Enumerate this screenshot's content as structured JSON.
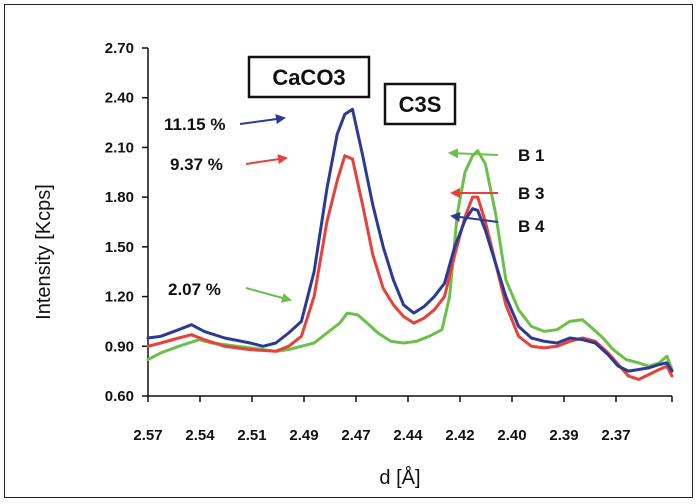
{
  "chart_data": {
    "type": "line",
    "title": "",
    "xlabel": "d [Å]",
    "ylabel": "Intensity [Kcps]",
    "xlim": [
      2.57,
      2.365
    ],
    "ylim": [
      0.6,
      2.7
    ],
    "x_reversed": true,
    "x_tick_labels": [
      "2.57",
      "2.54",
      "2.51",
      "2.49",
      "2.47",
      "2.44",
      "2.42",
      "2.40",
      "2.39",
      "2.37"
    ],
    "y_tick_labels": [
      "0.60",
      "0.90",
      "1.20",
      "1.50",
      "1.80",
      "2.10",
      "2.40",
      "2.70"
    ],
    "grid": false,
    "series": [
      {
        "name": "B 1",
        "color": "#6cc04a",
        "points": [
          [
            2.57,
            0.82
          ],
          [
            2.565,
            0.86
          ],
          [
            2.558,
            0.9
          ],
          [
            2.55,
            0.94
          ],
          [
            2.545,
            0.92
          ],
          [
            2.54,
            0.91
          ],
          [
            2.535,
            0.9
          ],
          [
            2.53,
            0.89
          ],
          [
            2.525,
            0.88
          ],
          [
            2.52,
            0.87
          ],
          [
            2.515,
            0.88
          ],
          [
            2.51,
            0.9
          ],
          [
            2.505,
            0.92
          ],
          [
            2.5,
            0.98
          ],
          [
            2.495,
            1.04
          ],
          [
            2.492,
            1.1
          ],
          [
            2.488,
            1.09
          ],
          [
            2.485,
            1.05
          ],
          [
            2.48,
            0.98
          ],
          [
            2.475,
            0.93
          ],
          [
            2.47,
            0.92
          ],
          [
            2.465,
            0.93
          ],
          [
            2.46,
            0.96
          ],
          [
            2.455,
            1.0
          ],
          [
            2.452,
            1.2
          ],
          [
            2.449,
            1.7
          ],
          [
            2.446,
            1.95
          ],
          [
            2.443,
            2.05
          ],
          [
            2.441,
            2.08
          ],
          [
            2.438,
            2.0
          ],
          [
            2.434,
            1.7
          ],
          [
            2.43,
            1.3
          ],
          [
            2.425,
            1.12
          ],
          [
            2.42,
            1.02
          ],
          [
            2.415,
            0.99
          ],
          [
            2.41,
            1.0
          ],
          [
            2.405,
            1.05
          ],
          [
            2.4,
            1.06
          ],
          [
            2.397,
            1.02
          ],
          [
            2.392,
            0.95
          ],
          [
            2.388,
            0.88
          ],
          [
            2.383,
            0.82
          ],
          [
            2.378,
            0.8
          ],
          [
            2.374,
            0.78
          ],
          [
            2.37,
            0.8
          ],
          [
            2.367,
            0.84
          ],
          [
            2.365,
            0.76
          ]
        ]
      },
      {
        "name": "B 3",
        "color": "#e8413c",
        "points": [
          [
            2.57,
            0.9
          ],
          [
            2.565,
            0.92
          ],
          [
            2.558,
            0.95
          ],
          [
            2.553,
            0.97
          ],
          [
            2.548,
            0.94
          ],
          [
            2.54,
            0.9
          ],
          [
            2.53,
            0.88
          ],
          [
            2.52,
            0.87
          ],
          [
            2.515,
            0.9
          ],
          [
            2.51,
            0.96
          ],
          [
            2.505,
            1.2
          ],
          [
            2.5,
            1.65
          ],
          [
            2.496,
            1.9
          ],
          [
            2.493,
            2.05
          ],
          [
            2.49,
            2.03
          ],
          [
            2.486,
            1.75
          ],
          [
            2.482,
            1.45
          ],
          [
            2.478,
            1.25
          ],
          [
            2.474,
            1.15
          ],
          [
            2.47,
            1.08
          ],
          [
            2.466,
            1.04
          ],
          [
            2.462,
            1.07
          ],
          [
            2.458,
            1.12
          ],
          [
            2.454,
            1.2
          ],
          [
            2.45,
            1.45
          ],
          [
            2.446,
            1.68
          ],
          [
            2.443,
            1.8
          ],
          [
            2.441,
            1.8
          ],
          [
            2.438,
            1.65
          ],
          [
            2.434,
            1.4
          ],
          [
            2.43,
            1.15
          ],
          [
            2.425,
            0.96
          ],
          [
            2.42,
            0.9
          ],
          [
            2.415,
            0.89
          ],
          [
            2.41,
            0.9
          ],
          [
            2.405,
            0.93
          ],
          [
            2.4,
            0.95
          ],
          [
            2.395,
            0.93
          ],
          [
            2.39,
            0.86
          ],
          [
            2.386,
            0.79
          ],
          [
            2.382,
            0.72
          ],
          [
            2.378,
            0.7
          ],
          [
            2.374,
            0.73
          ],
          [
            2.37,
            0.76
          ],
          [
            2.367,
            0.78
          ],
          [
            2.365,
            0.72
          ]
        ]
      },
      {
        "name": "B 4",
        "color": "#2c3a94",
        "points": [
          [
            2.57,
            0.95
          ],
          [
            2.565,
            0.96
          ],
          [
            2.558,
            1.0
          ],
          [
            2.553,
            1.03
          ],
          [
            2.548,
            0.99
          ],
          [
            2.54,
            0.95
          ],
          [
            2.53,
            0.92
          ],
          [
            2.525,
            0.9
          ],
          [
            2.52,
            0.92
          ],
          [
            2.515,
            0.98
          ],
          [
            2.51,
            1.05
          ],
          [
            2.505,
            1.35
          ],
          [
            2.5,
            1.85
          ],
          [
            2.496,
            2.18
          ],
          [
            2.493,
            2.3
          ],
          [
            2.49,
            2.33
          ],
          [
            2.486,
            2.05
          ],
          [
            2.482,
            1.75
          ],
          [
            2.478,
            1.5
          ],
          [
            2.474,
            1.3
          ],
          [
            2.47,
            1.15
          ],
          [
            2.466,
            1.1
          ],
          [
            2.462,
            1.14
          ],
          [
            2.458,
            1.2
          ],
          [
            2.454,
            1.28
          ],
          [
            2.45,
            1.5
          ],
          [
            2.446,
            1.66
          ],
          [
            2.443,
            1.73
          ],
          [
            2.441,
            1.72
          ],
          [
            2.438,
            1.6
          ],
          [
            2.434,
            1.4
          ],
          [
            2.43,
            1.2
          ],
          [
            2.425,
            1.02
          ],
          [
            2.42,
            0.95
          ],
          [
            2.415,
            0.93
          ],
          [
            2.41,
            0.92
          ],
          [
            2.405,
            0.95
          ],
          [
            2.4,
            0.94
          ],
          [
            2.395,
            0.92
          ],
          [
            2.39,
            0.85
          ],
          [
            2.386,
            0.78
          ],
          [
            2.382,
            0.75
          ],
          [
            2.378,
            0.76
          ],
          [
            2.374,
            0.77
          ],
          [
            2.37,
            0.79
          ],
          [
            2.367,
            0.8
          ],
          [
            2.365,
            0.75
          ]
        ]
      }
    ],
    "annotations": [
      {
        "id": "caco3",
        "text": "CaCO3",
        "boxed": true
      },
      {
        "id": "c3s",
        "text": "C3S",
        "boxed": true
      },
      {
        "id": "pct-b4",
        "text": "11.15 %",
        "arrow_color": "#2c3a94"
      },
      {
        "id": "pct-b3",
        "text": "9.37 %",
        "arrow_color": "#e8413c"
      },
      {
        "id": "pct-b1",
        "text": "2.07 %",
        "arrow_color": "#6cc04a"
      },
      {
        "id": "label-b1",
        "text": "B 1",
        "arrow_color": "#6cc04a"
      },
      {
        "id": "label-b3",
        "text": "B 3",
        "arrow_color": "#e8413c"
      },
      {
        "id": "label-b4",
        "text": "B 4",
        "arrow_color": "#2c3a94"
      }
    ]
  }
}
